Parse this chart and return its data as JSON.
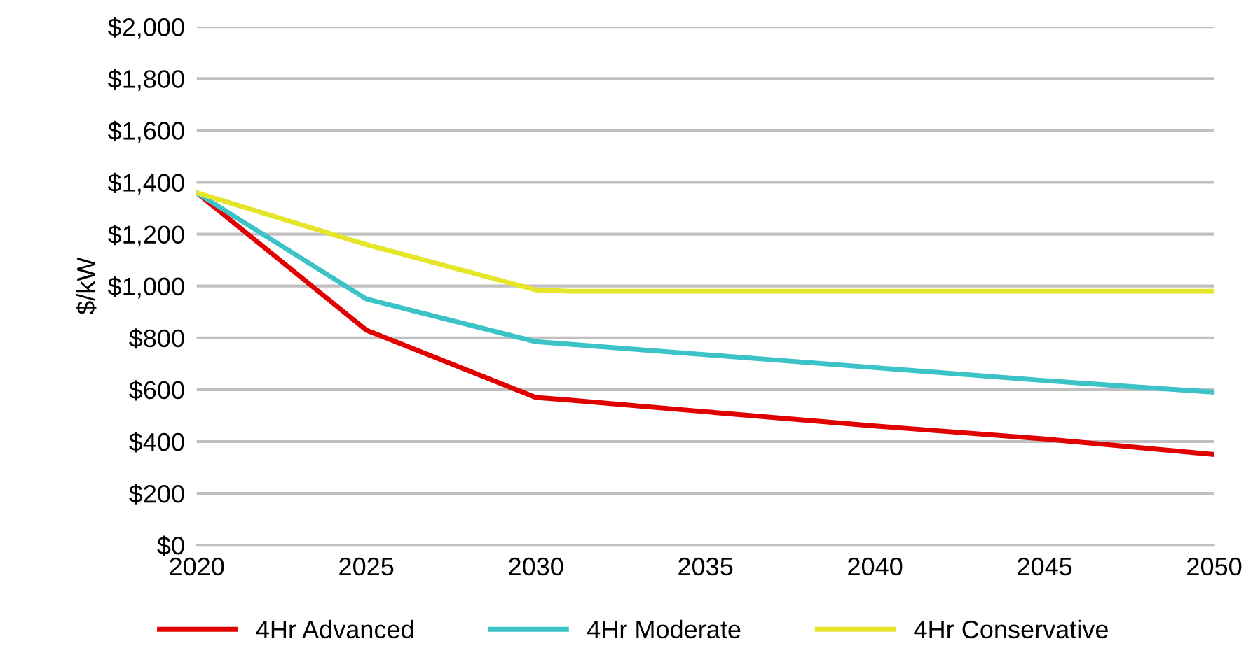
{
  "chart_data": {
    "type": "line",
    "ylabel": "$/kW",
    "x": [
      2020,
      2025,
      2030,
      2031,
      2035,
      2040,
      2045,
      2050
    ],
    "series": [
      {
        "name": "4Hr Advanced",
        "color": "#e00000",
        "values": [
          1360,
          830,
          570,
          560,
          515,
          460,
          410,
          350
        ]
      },
      {
        "name": "4Hr Moderate",
        "color": "#3cc3c8",
        "values": [
          1360,
          950,
          785,
          775,
          735,
          685,
          635,
          590
        ]
      },
      {
        "name": "4Hr Conservative",
        "color": "#e5e52a",
        "values": [
          1360,
          1160,
          985,
          980,
          980,
          980,
          980,
          980
        ]
      }
    ],
    "xlim": [
      2020,
      2050
    ],
    "xticks": [
      2020,
      2025,
      2030,
      2035,
      2040,
      2045,
      2050
    ],
    "ylim": [
      0,
      2000
    ],
    "yticks": [
      {
        "value": 0,
        "label": "$0"
      },
      {
        "value": 200,
        "label": "$200"
      },
      {
        "value": 400,
        "label": "$400"
      },
      {
        "value": 600,
        "label": "$600"
      },
      {
        "value": 800,
        "label": "$800"
      },
      {
        "value": 1000,
        "label": "$1,000"
      },
      {
        "value": 1200,
        "label": "$1,200"
      },
      {
        "value": 1400,
        "label": "$1,400"
      },
      {
        "value": 1600,
        "label": "$1,600"
      },
      {
        "value": 1800,
        "label": "$1,800"
      },
      {
        "value": 2000,
        "label": "$2,000"
      }
    ],
    "grid": "y",
    "legend": "bottom"
  }
}
